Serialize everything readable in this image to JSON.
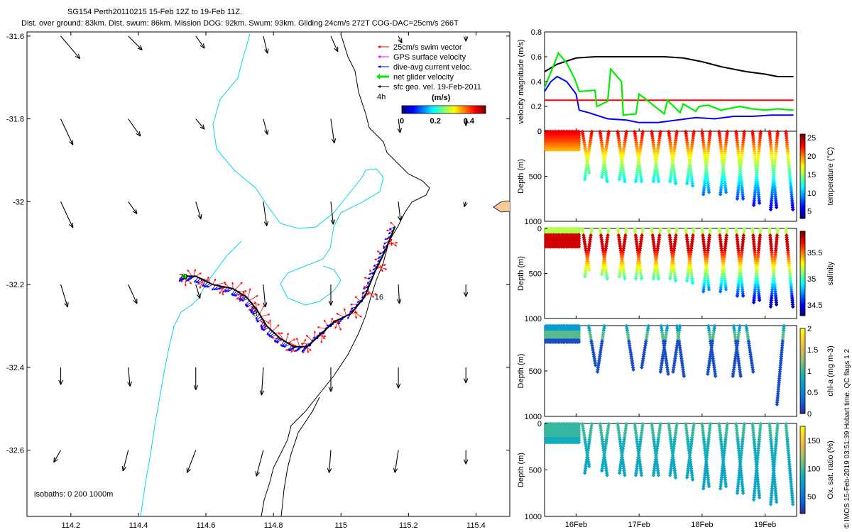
{
  "header": {
    "line1": "SG154 Perth20110215 15-Feb 12Z to 19-Feb 11Z.",
    "line2": "Dist. over ground: 83km. Dist. swum: 86km. Mission DOG: 92km. Swum: 93km. Gliding 24cm/s 272T COG-DAC=25cm/s 266T"
  },
  "colors": {
    "swim": "#ff0000",
    "gps": "#ff00ff",
    "dac": "#0000ff",
    "net": "#00ee00",
    "sfc": "#000000",
    "isobath_200": "#00d8e8",
    "isobath_1000": "#000000",
    "land": "#f5c99a",
    "dog_line": "#000000"
  },
  "chart_data": [
    {
      "id": "map",
      "type": "scatter",
      "title": "",
      "xlabel": "",
      "ylabel": "",
      "xlim": [
        114.07,
        115.5
      ],
      "ylim": [
        -32.76,
        -31.59
      ],
      "xticks": [
        114.2,
        114.4,
        114.6,
        114.8,
        115,
        115.2,
        115.4
      ],
      "xtick_labels": [
        "114.2",
        "114.4",
        "114.6",
        "114.8",
        "115",
        "115.2",
        "115.4"
      ],
      "yticks": [
        -31.6,
        -31.8,
        -32,
        -32.2,
        -32.4,
        -32.6
      ],
      "ytick_labels": [
        "-31.6",
        "-31.8",
        "-32",
        "-32.2",
        "-32.4",
        "-32.6"
      ],
      "legend": {
        "placement": "top-right",
        "entries": [
          "25cm/s swim vector",
          "GPS surface velocity",
          "dive-avg current veloc.",
          "net glider velocity",
          "sfc geo. vel. 19-Feb-2011"
        ],
        "duration": "4h"
      },
      "colorbar": {
        "label": "(m/s)",
        "ticks": [
          0,
          0.2,
          0.4
        ],
        "tick_labels": [
          "0",
          "0.2",
          "0.4"
        ],
        "range": [
          0,
          0.5
        ]
      },
      "isobath_note": "isobaths: 0   200  1000m",
      "track_labels": [
        {
          "text": "20",
          "lon": 114.52,
          "lat": -32.18
        },
        {
          "text": "8",
          "lon": 114.74,
          "lat": -32.27
        },
        {
          "text": "16",
          "lon": 115.1,
          "lat": -32.23
        }
      ],
      "track": [
        [
          114.53,
          -32.18
        ],
        [
          114.57,
          -32.18
        ],
        [
          114.62,
          -32.2
        ],
        [
          114.68,
          -32.21
        ],
        [
          114.72,
          -32.23
        ],
        [
          114.75,
          -32.26
        ],
        [
          114.78,
          -32.3
        ],
        [
          114.82,
          -32.33
        ],
        [
          114.86,
          -32.35
        ],
        [
          114.9,
          -32.35
        ],
        [
          114.94,
          -32.32
        ],
        [
          114.98,
          -32.29
        ],
        [
          115.03,
          -32.27
        ],
        [
          115.07,
          -32.23
        ],
        [
          115.1,
          -32.17
        ],
        [
          115.13,
          -32.12
        ],
        [
          115.16,
          -32.06
        ]
      ],
      "isobath_1000": [
        [
          114.87,
          -32.08
        ],
        [
          114.85,
          -32.12
        ],
        [
          114.82,
          -32.16
        ],
        [
          114.81,
          -32.23
        ],
        [
          114.8,
          -32.3
        ],
        [
          114.78,
          -32.36
        ],
        [
          114.76,
          -32.42
        ],
        [
          114.75,
          -32.5
        ],
        [
          114.74,
          -32.58
        ],
        [
          114.74,
          -32.66
        ],
        [
          114.75,
          -32.71
        ],
        [
          114.76,
          -32.76
        ]
      ],
      "sfc_vectors": [
        {
          "lon": 114.17,
          "lat": -31.6,
          "u": 0.055,
          "v": -0.065
        },
        {
          "lon": 114.37,
          "lat": -31.6,
          "u": 0.04,
          "v": -0.04
        },
        {
          "lon": 114.57,
          "lat": -31.6,
          "u": 0.025,
          "v": -0.035
        },
        {
          "lon": 114.77,
          "lat": -31.6,
          "u": 0.012,
          "v": -0.05
        },
        {
          "lon": 114.97,
          "lat": -31.6,
          "u": 0.02,
          "v": -0.045
        },
        {
          "lon": 115.17,
          "lat": -31.6,
          "u": 0.01,
          "v": -0.02
        },
        {
          "lon": 115.37,
          "lat": -31.6,
          "u": 0.0,
          "v": -0.015
        },
        {
          "lon": 114.17,
          "lat": -31.8,
          "u": 0.035,
          "v": -0.075
        },
        {
          "lon": 114.37,
          "lat": -31.8,
          "u": 0.035,
          "v": -0.05
        },
        {
          "lon": 114.57,
          "lat": -31.8,
          "u": 0.025,
          "v": -0.03
        },
        {
          "lon": 114.77,
          "lat": -31.8,
          "u": 0.012,
          "v": -0.045
        },
        {
          "lon": 114.97,
          "lat": -31.8,
          "u": 0.01,
          "v": -0.07
        },
        {
          "lon": 115.17,
          "lat": -31.8,
          "u": 0.005,
          "v": -0.04
        },
        {
          "lon": 115.37,
          "lat": -31.8,
          "u": 0.0,
          "v": -0.02
        },
        {
          "lon": 114.17,
          "lat": -32.0,
          "u": 0.035,
          "v": -0.075
        },
        {
          "lon": 114.37,
          "lat": -32.0,
          "u": 0.025,
          "v": -0.035
        },
        {
          "lon": 114.57,
          "lat": -32.0,
          "u": 0.015,
          "v": -0.05
        },
        {
          "lon": 114.77,
          "lat": -32.0,
          "u": 0.01,
          "v": -0.07
        },
        {
          "lon": 114.97,
          "lat": -32.0,
          "u": 0.007,
          "v": -0.065
        },
        {
          "lon": 115.17,
          "lat": -32.0,
          "u": 0.006,
          "v": -0.055
        },
        {
          "lon": 115.37,
          "lat": -32.0,
          "u": -0.005,
          "v": -0.015
        },
        {
          "lon": 114.17,
          "lat": -32.2,
          "u": 0.02,
          "v": -0.065
        },
        {
          "lon": 114.37,
          "lat": -32.2,
          "u": 0.025,
          "v": -0.055
        },
        {
          "lon": 114.57,
          "lat": -32.2,
          "u": 0.012,
          "v": -0.04
        },
        {
          "lon": 114.77,
          "lat": -32.2,
          "u": 0.006,
          "v": -0.065
        },
        {
          "lon": 114.97,
          "lat": -32.2,
          "u": 0.0,
          "v": -0.06
        },
        {
          "lon": 115.17,
          "lat": -32.2,
          "u": 0.003,
          "v": -0.055
        },
        {
          "lon": 115.37,
          "lat": -32.2,
          "u": 0.0,
          "v": -0.035
        },
        {
          "lon": 114.17,
          "lat": -32.4,
          "u": 0.0,
          "v": -0.05
        },
        {
          "lon": 114.37,
          "lat": -32.4,
          "u": 0.005,
          "v": -0.055
        },
        {
          "lon": 114.57,
          "lat": -32.4,
          "u": 0.0,
          "v": -0.065
        },
        {
          "lon": 114.77,
          "lat": -32.4,
          "u": -0.005,
          "v": -0.08
        },
        {
          "lon": 114.97,
          "lat": -32.4,
          "u": 0.0,
          "v": -0.07
        },
        {
          "lon": 115.17,
          "lat": -32.4,
          "u": 0.0,
          "v": -0.06
        },
        {
          "lon": 115.37,
          "lat": -32.4,
          "u": 0.0,
          "v": -0.045
        },
        {
          "lon": 114.17,
          "lat": -32.6,
          "u": -0.02,
          "v": -0.035
        },
        {
          "lon": 114.37,
          "lat": -32.6,
          "u": -0.015,
          "v": -0.06
        },
        {
          "lon": 114.57,
          "lat": -32.6,
          "u": -0.025,
          "v": -0.065
        },
        {
          "lon": 114.77,
          "lat": -32.6,
          "u": -0.02,
          "v": -0.075
        },
        {
          "lon": 114.97,
          "lat": -32.6,
          "u": -0.005,
          "v": -0.065
        },
        {
          "lon": 115.17,
          "lat": -32.6,
          "u": -0.01,
          "v": -0.065
        },
        {
          "lon": 115.37,
          "lat": -32.6,
          "u": 0.0,
          "v": -0.04
        }
      ]
    },
    {
      "id": "velocity",
      "type": "line",
      "ylabel": "velocity magnitude (m/s)",
      "ylim": [
        0,
        0.8
      ],
      "yticks": [
        0,
        0.2,
        0.4,
        0.6,
        0.8
      ],
      "ytick_labels": [
        "0",
        "0.2",
        "0.4",
        "0.6",
        "0.8"
      ],
      "xlim": [
        15.5,
        19.5
      ],
      "series": [
        {
          "name": "black",
          "x": [
            15.5,
            15.7,
            16.0,
            16.3,
            16.7,
            17.0,
            17.4,
            17.7,
            18.0,
            18.3,
            18.7,
            19.0,
            19.2,
            19.45
          ],
          "values": [
            0.48,
            0.54,
            0.59,
            0.6,
            0.6,
            0.6,
            0.6,
            0.59,
            0.56,
            0.52,
            0.48,
            0.46,
            0.44,
            0.44
          ]
        },
        {
          "name": "blue",
          "x": [
            15.5,
            15.6,
            15.7,
            15.85,
            16.0,
            16.05,
            16.2,
            16.5,
            16.8,
            17.0,
            17.3,
            17.6,
            17.9,
            18.2,
            18.5,
            18.8,
            19.1,
            19.45
          ],
          "values": [
            0.32,
            0.4,
            0.44,
            0.4,
            0.3,
            0.17,
            0.15,
            0.1,
            0.09,
            0.07,
            0.07,
            0.09,
            0.11,
            0.1,
            0.12,
            0.12,
            0.13,
            0.13
          ]
        },
        {
          "name": "red",
          "x": [
            15.5,
            19.45
          ],
          "values": [
            0.25,
            0.25
          ]
        },
        {
          "name": "green",
          "x": [
            15.5,
            15.62,
            15.72,
            15.85,
            15.98,
            16.05,
            16.3,
            16.33,
            16.5,
            16.55,
            16.72,
            16.75,
            16.95,
            17.0,
            17.4,
            17.45,
            17.65,
            17.7,
            17.9,
            17.95,
            18.1,
            18.3,
            18.6,
            18.8,
            19.0,
            19.2,
            19.45
          ],
          "values": [
            0.35,
            0.5,
            0.63,
            0.55,
            0.42,
            0.32,
            0.33,
            0.2,
            0.24,
            0.5,
            0.4,
            0.13,
            0.14,
            0.3,
            0.14,
            0.25,
            0.15,
            0.22,
            0.16,
            0.2,
            0.21,
            0.17,
            0.2,
            0.18,
            0.17,
            0.18,
            0.17
          ]
        }
      ]
    },
    {
      "id": "temperature",
      "type": "scatter",
      "ylabel": "Depth (m)",
      "ylim": [
        1000,
        0
      ],
      "yticks": [
        0,
        500,
        1000
      ],
      "ytick_labels": [
        "0",
        "500",
        "1000"
      ],
      "colorbar": {
        "label": "temperature (°C)",
        "ticks": [
          5,
          10,
          15,
          20,
          25
        ],
        "tick_labels": [
          "5",
          "10",
          "15",
          "20",
          "25"
        ],
        "range": [
          3,
          26
        ]
      },
      "profiles_days": [
        16.1,
        16.25,
        16.38,
        16.52,
        16.66,
        16.8,
        16.93,
        17.06,
        17.2,
        17.34,
        17.47,
        17.6,
        17.74,
        17.87,
        18.0,
        18.13,
        18.27,
        18.4,
        18.54,
        18.67,
        18.8,
        18.93,
        19.07,
        19.2,
        19.33
      ],
      "profiles_maxdepth": [
        480,
        540,
        560,
        520,
        560,
        540,
        580,
        560,
        580,
        560,
        600,
        580,
        620,
        600,
        700,
        720,
        700,
        720,
        760,
        760,
        820,
        840,
        860,
        880,
        880
      ]
    },
    {
      "id": "salinity",
      "type": "scatter",
      "ylabel": "Depth (m)",
      "ylim": [
        1000,
        0
      ],
      "yticks": [
        0,
        500,
        1000
      ],
      "ytick_labels": [
        "0",
        "500",
        "1000"
      ],
      "colorbar": {
        "label": "salinity",
        "ticks": [
          34.5,
          35,
          35.5
        ],
        "tick_labels": [
          "34.5",
          "35",
          "35.5"
        ],
        "range": [
          34.3,
          35.9
        ]
      }
    },
    {
      "id": "chla",
      "type": "scatter",
      "ylabel": "Depth (m)",
      "ylim": [
        1000,
        0
      ],
      "yticks": [
        500,
        1000
      ],
      "ytick_labels": [
        "500",
        "1000"
      ],
      "colorbar": {
        "label": "chl-a (mg m-3)",
        "ticks": [
          0,
          0.5,
          1,
          1.5,
          2
        ],
        "tick_labels": [
          "0",
          "0.5",
          "1",
          "1.5",
          "2"
        ],
        "range": [
          0,
          2
        ]
      },
      "profiles_days": [
        16.2,
        16.45,
        16.8,
        17.15,
        17.35,
        17.45,
        17.6,
        17.65,
        18.1,
        18.2,
        18.5,
        18.6,
        18.7,
        19.3
      ],
      "profiles_maxdepth": [
        450,
        520,
        500,
        480,
        540,
        520,
        560,
        520,
        560,
        540,
        560,
        560,
        520,
        880
      ]
    },
    {
      "id": "oxygen",
      "type": "scatter",
      "ylabel": "Depth (m)",
      "ylim": [
        1000,
        0
      ],
      "yticks": [
        0,
        500,
        1000
      ],
      "ytick_labels": [
        "0",
        "500",
        "1000"
      ],
      "xticks": [
        16,
        17,
        18,
        19
      ],
      "xtick_labels": [
        "16Feb",
        "17Feb",
        "18Feb",
        "19Feb"
      ],
      "colorbar": {
        "label": "Ox. sat. ratio (%)",
        "ticks": [
          50,
          100,
          150
        ],
        "tick_labels": [
          "50",
          "100",
          "150"
        ],
        "range": [
          20,
          175
        ]
      }
    }
  ],
  "side_note": "© IMOS 15-Feb-2019 03:51:39 Hobart time. QC flags 1  2"
}
